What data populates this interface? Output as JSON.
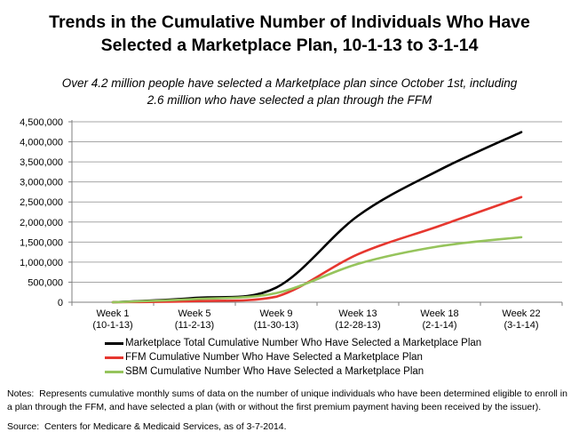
{
  "title": {
    "lines": [
      "Trends in the Cumulative Number of Individuals Who Have",
      "Selected a Marketplace Plan, 10-1-13 to 3-1-14"
    ]
  },
  "subtitle": {
    "lines": [
      "Over 4.2 million people have selected a Marketplace plan since October 1st, including",
      "2.6 million who have selected a plan through the FFM"
    ]
  },
  "chart_data": {
    "type": "line",
    "smoothed": true,
    "categories": [
      [
        "Week 1",
        "(10-1-13)"
      ],
      [
        "Week 5",
        "(11-2-13)"
      ],
      [
        "Week 9",
        "(11-30-13)"
      ],
      [
        "Week 13",
        "(12-28-13)"
      ],
      [
        "Week 18",
        "(2-1-14)"
      ],
      [
        "Week 22",
        "(3-1-14)"
      ]
    ],
    "series": [
      {
        "name": "Marketplace Total Cumulative Number Who Have Selected a Marketplace Plan",
        "color": "#000000",
        "values": [
          0,
          106000,
          365000,
          2153000,
          3299000,
          4242000
        ]
      },
      {
        "name": "FFM Cumulative Number Who Have Selected a Marketplace Plan",
        "color": "#e6372f",
        "values": [
          0,
          27000,
          137000,
          1196000,
          1904000,
          2621000
        ]
      },
      {
        "name": "SBM Cumulative Number Who Have Selected a Marketplace Plan",
        "color": "#96c45c",
        "values": [
          0,
          79000,
          227000,
          957000,
          1396000,
          1621000
        ]
      }
    ],
    "ylim": [
      0,
      4500000
    ],
    "ytick_step": 500000,
    "ytick_labels": [
      "0",
      "500,000",
      "1,000,000",
      "1,500,000",
      "2,000,000",
      "2,500,000",
      "3,000,000",
      "3,500,000",
      "4,000,000",
      "4,500,000"
    ],
    "grid": true,
    "gridline_color": "#a6a6a6",
    "axis_color": "#7f7f7f",
    "legend_position": "bottom-left",
    "xlabel": "",
    "ylabel": ""
  },
  "notes": {
    "text": "Notes:  Represents cumulative monthly sums of data on the number of unique individuals who have been determined eligible to enroll in a plan through the FFM, and have selected a plan (with or without the first premium payment having been received by the issuer).",
    "source": "Source:  Centers for Medicare & Medicaid Services, as of 3-7-2014."
  }
}
